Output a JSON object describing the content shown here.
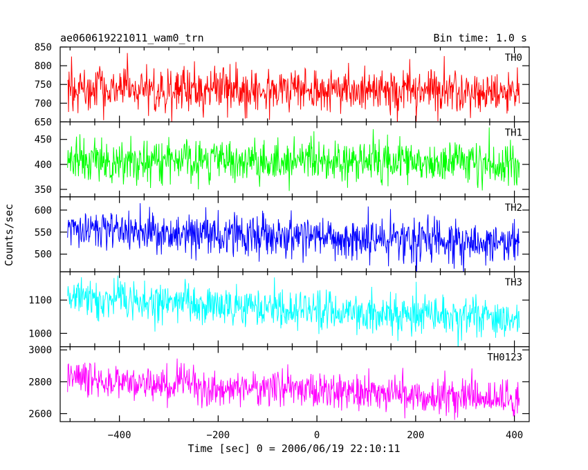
{
  "chart_data": {
    "type": "line",
    "title_left": "ae060619221011_wam0_trn",
    "title_right": "Bin time: 1.0 s",
    "xlabel": "Time [sec] 0 = 2006/06/19 22:10:11",
    "ylabel": "Counts/sec",
    "xlim": [
      -520,
      430
    ],
    "x_range": [
      -505,
      410
    ],
    "x_ticks": [
      "−400",
      "−200",
      "0",
      "200",
      "400"
    ],
    "x_tick_values": [
      -400,
      -200,
      0,
      200,
      400
    ],
    "panels": [
      {
        "name": "TH0",
        "color": "#ff0000",
        "ylim": [
          650,
          850
        ],
        "y_ticks": [
          "650",
          "700",
          "750",
          "800",
          "850"
        ],
        "y_tick_values": [
          650,
          700,
          750,
          800,
          850
        ],
        "mean_start": 740,
        "mean_end": 728,
        "noise": 28
      },
      {
        "name": "TH1",
        "color": "#00ff00",
        "ylim": [
          335,
          485
        ],
        "y_ticks": [
          "350",
          "400",
          "450"
        ],
        "y_tick_values": [
          350,
          400,
          450
        ],
        "mean_start": 407,
        "mean_end": 403,
        "noise": 21
      },
      {
        "name": "TH2",
        "color": "#0000ff",
        "ylim": [
          460,
          630
        ],
        "y_ticks": [
          "500",
          "550",
          "600"
        ],
        "y_tick_values": [
          500,
          550,
          600
        ],
        "mean_start": 556,
        "mean_end": 523,
        "noise": 24
      },
      {
        "name": "TH3",
        "color": "#00ffff",
        "ylim": [
          960,
          1185
        ],
        "y_ticks": [
          "1000",
          "1100"
        ],
        "y_tick_values": [
          1000,
          1100
        ],
        "mean_start": 1105,
        "mean_end": 1045,
        "noise": 30
      },
      {
        "name": "TH0123",
        "color": "#ff00ff",
        "ylim": [
          2550,
          3020
        ],
        "y_ticks": [
          "2600",
          "2800",
          "3000"
        ],
        "y_tick_values": [
          2600,
          2800,
          3000
        ],
        "mean_start": 2820,
        "mean_end": 2680,
        "noise": 55
      }
    ]
  }
}
